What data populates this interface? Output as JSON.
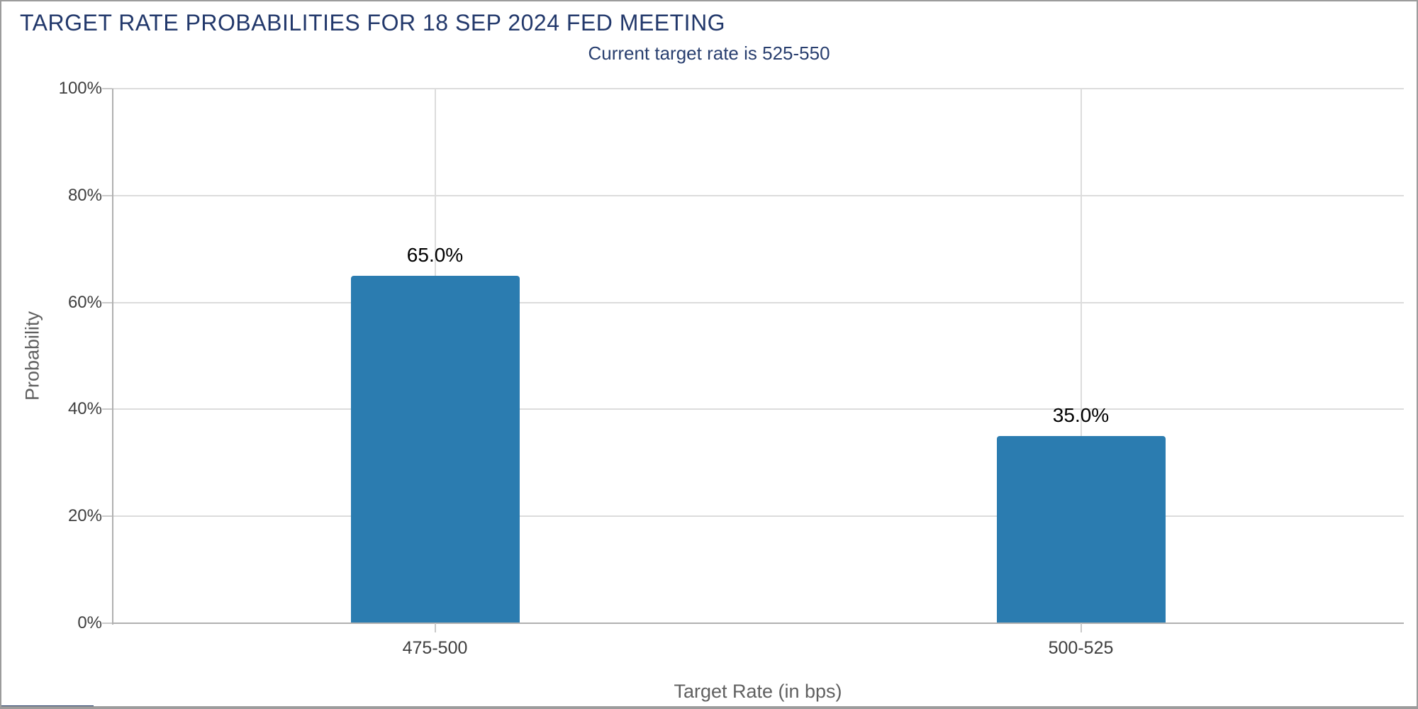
{
  "header": {
    "title": "TARGET RATE PROBABILITIES FOR 18 SEP 2024 FED MEETING",
    "subtitle": "Current target rate is 525-550"
  },
  "chart_data": {
    "type": "bar",
    "title": "TARGET RATE PROBABILITIES FOR 18 SEP 2024 FED MEETING",
    "subtitle": "Current target rate is 525-550",
    "categories": [
      "475-500",
      "500-525"
    ],
    "values": [
      65.0,
      35.0
    ],
    "value_labels": [
      "65.0%",
      "35.0%"
    ],
    "xlabel": "Target Rate (in bps)",
    "ylabel": "Probability",
    "ylim": [
      0,
      100
    ],
    "yticks": [
      0,
      20,
      40,
      60,
      80,
      100
    ],
    "ytick_labels": [
      "0%",
      "20%",
      "40%",
      "60%",
      "80%",
      "100%"
    ],
    "grid": true,
    "legend": "none",
    "bar_color": "#2b7cb0",
    "title_color": "#22386b",
    "subtitle_color": "#293f6f",
    "axis_text_color": "#3f3f3f",
    "axis_title_color": "#606060",
    "gridline_color": "#dcdcdc"
  }
}
